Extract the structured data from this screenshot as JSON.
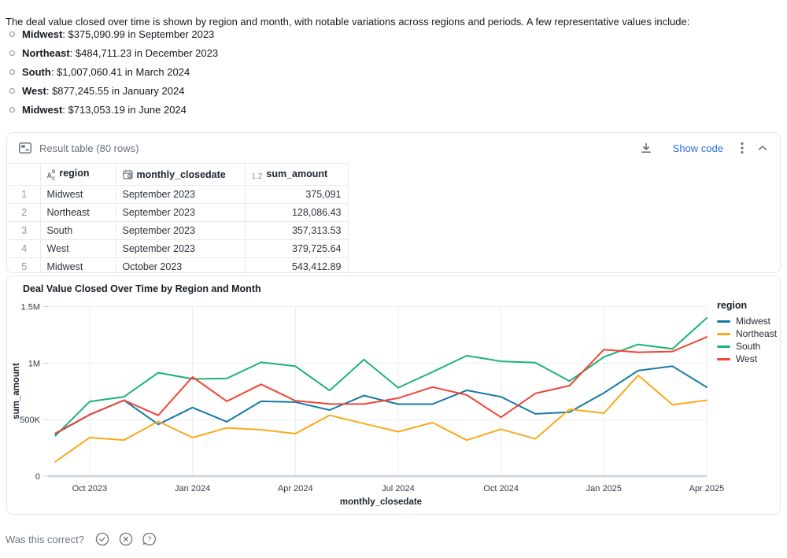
{
  "intro": {
    "text": "The deal value closed over time is shown by region and month, with notable variations across regions and periods. A few representative values include:"
  },
  "bullets": [
    {
      "label": "Midwest",
      "text": ": $375,090.99 in September 2023"
    },
    {
      "label": "Northeast",
      "text": ": $484,711.23 in December 2023"
    },
    {
      "label": "South",
      "text": ": $1,007,060.41 in March 2024"
    },
    {
      "label": "West",
      "text": ": $877,245.55 in January 2024"
    },
    {
      "label": "Midwest",
      "text": ": $713,053.19 in June 2024"
    }
  ],
  "result_table": {
    "title": "Result table (80 rows)",
    "show_code_label": "Show code",
    "icons": [
      "result-table-icon",
      "download-icon",
      "kebab-menu-icon",
      "collapse-chevron-icon"
    ],
    "columns": [
      {
        "label": "region",
        "type": "text"
      },
      {
        "label": "monthly_closedate",
        "type": "date"
      },
      {
        "label": "sum_amount",
        "type": "number",
        "number_icon": "1.2"
      }
    ],
    "rows": [
      {
        "num": "1",
        "region": "Midwest",
        "monthly_closedate": "September 2023",
        "sum_amount": "375,091"
      },
      {
        "num": "2",
        "region": "Northeast",
        "monthly_closedate": "September 2023",
        "sum_amount": "128,086.43"
      },
      {
        "num": "3",
        "region": "South",
        "monthly_closedate": "September 2023",
        "sum_amount": "357,313.53"
      },
      {
        "num": "4",
        "region": "West",
        "monthly_closedate": "September 2023",
        "sum_amount": "379,725.64"
      },
      {
        "num": "5",
        "region": "Midwest",
        "monthly_closedate": "October 2023",
        "sum_amount": "543,412.89"
      }
    ]
  },
  "chart_data": {
    "type": "line",
    "title": "Deal Value Closed Over Time by Region and Month",
    "xlabel": "monthly_closedate",
    "ylabel": "sum_amount",
    "legend_title": "region",
    "legend_position": "right",
    "grid": true,
    "ylim": [
      0,
      1500000
    ],
    "y_ticks": [
      "0",
      "500K",
      "1M",
      "1.5M"
    ],
    "x_ticks": [
      "Oct 2023",
      "Jan 2024",
      "Apr 2024",
      "Jul 2024",
      "Oct 2024",
      "Jan 2025",
      "Apr 2025"
    ],
    "x": [
      "Sep 2023",
      "Oct 2023",
      "Nov 2023",
      "Dec 2023",
      "Jan 2024",
      "Feb 2024",
      "Mar 2024",
      "Apr 2024",
      "May 2024",
      "Jun 2024",
      "Jul 2024",
      "Aug 2024",
      "Sep 2024",
      "Oct 2024",
      "Nov 2024",
      "Dec 2024",
      "Jan 2025",
      "Feb 2025",
      "Mar 2025",
      "Apr 2025"
    ],
    "series": [
      {
        "name": "Midwest",
        "color": "#1779A6",
        "values": [
          375091,
          543413,
          671000,
          458000,
          607000,
          481000,
          662000,
          655000,
          585000,
          713053,
          637000,
          637000,
          760000,
          702000,
          551000,
          567000,
          736000,
          934000,
          973000,
          787000
        ]
      },
      {
        "name": "Northeast",
        "color": "#FBA91A",
        "values": [
          128086,
          342000,
          318000,
          484711,
          341000,
          427000,
          411000,
          376000,
          539000,
          465000,
          393000,
          474000,
          318000,
          416000,
          330000,
          592000,
          557000,
          892000,
          632000,
          671000
        ]
      },
      {
        "name": "South",
        "color": "#1BB276",
        "values": [
          357314,
          660000,
          702000,
          915000,
          860000,
          864000,
          1007060,
          973000,
          758000,
          1031000,
          783000,
          922000,
          1066000,
          1016000,
          1004000,
          841000,
          1054000,
          1166000,
          1127000,
          1399000
        ]
      },
      {
        "name": "West",
        "color": "#F24437",
        "values": [
          379726,
          545000,
          671000,
          538000,
          877246,
          662000,
          813000,
          667000,
          639000,
          638000,
          690000,
          788000,
          718000,
          521000,
          732000,
          801000,
          1120000,
          1096000,
          1103000,
          1231000
        ]
      }
    ]
  },
  "footer": {
    "question": "Was this correct?"
  }
}
